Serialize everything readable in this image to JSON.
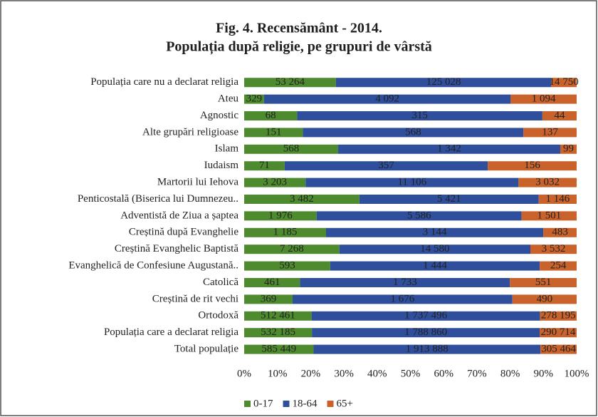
{
  "chart_data": {
    "type": "stacked_bar_percent",
    "orientation": "horizontal",
    "title": "Fig. 4.   Recensământ - 2014.",
    "subtitle": "Populația după religie, pe grupuri de vârstă",
    "categories": [
      "Populația care nu a declarat religia",
      "Ateu",
      "Agnostic",
      "Alte grupări religioase",
      "Islam",
      "Iudaism",
      "Martorii lui Iehova",
      "Penticostală (Biserica lui Dumnezeu..",
      "Adventistă de Ziua a șaptea",
      "Creștină după Evanghelie",
      "Creștină Evanghelic Baptistă",
      "Evanghelică de Confesiune Augustană..",
      "Catolică",
      "Creștină de rit vechi",
      "Ortodoxă",
      "Populația care a declarat religia",
      "Total populație"
    ],
    "series": [
      {
        "name": "0-17",
        "color": "#4e8a2e",
        "values": [
          53264,
          329,
          68,
          151,
          568,
          71,
          3203,
          3482,
          1976,
          1185,
          7268,
          593,
          461,
          369,
          512461,
          532185,
          585449
        ],
        "value_labels": [
          "53 264",
          "329",
          "68",
          "151",
          "568",
          "71",
          "3 203",
          "3 482",
          "1 976",
          "1 185",
          "7 268",
          "593",
          "461",
          "369",
          "512 461",
          "532 185",
          "585 449"
        ]
      },
      {
        "name": "18-64",
        "color": "#2f4f9c",
        "values": [
          125028,
          4092,
          315,
          568,
          1342,
          357,
          11106,
          5421,
          5586,
          3144,
          14580,
          1444,
          1733,
          1676,
          1737496,
          1788860,
          1913888
        ],
        "value_labels": [
          "125 028",
          "4 092",
          "315",
          "568",
          "1 342",
          "357",
          "11 106",
          "5 421",
          "5 586",
          "3 144",
          "14 580",
          "1 444",
          "1 733",
          "1 676",
          "1 737 496",
          "1 788 860",
          "1 913 888"
        ]
      },
      {
        "name": "65+",
        "color": "#c9622b",
        "values": [
          14750,
          1094,
          44,
          137,
          99,
          156,
          3032,
          1146,
          1501,
          483,
          3532,
          254,
          551,
          490,
          278195,
          290714,
          305464
        ],
        "value_labels": [
          "14 750",
          "1 094",
          "44",
          "137",
          "99",
          "156",
          "3 032",
          "1 146",
          "1 501",
          "483",
          "3 532",
          "254",
          "551",
          "490",
          "278 195",
          "290 714",
          "305 464"
        ]
      }
    ],
    "xlim": [
      0,
      100
    ],
    "xticks": [
      {
        "value": 0,
        "label": "0%"
      },
      {
        "value": 10,
        "label": "10%"
      },
      {
        "value": 20,
        "label": "20%"
      },
      {
        "value": 30,
        "label": "30%"
      },
      {
        "value": 40,
        "label": "40%"
      },
      {
        "value": 50,
        "label": "50%"
      },
      {
        "value": 60,
        "label": "60%"
      },
      {
        "value": 70,
        "label": "70%"
      },
      {
        "value": 80,
        "label": "80%"
      },
      {
        "value": 90,
        "label": "90%"
      },
      {
        "value": 100,
        "label": "100%"
      }
    ],
    "legend": "bottom"
  }
}
